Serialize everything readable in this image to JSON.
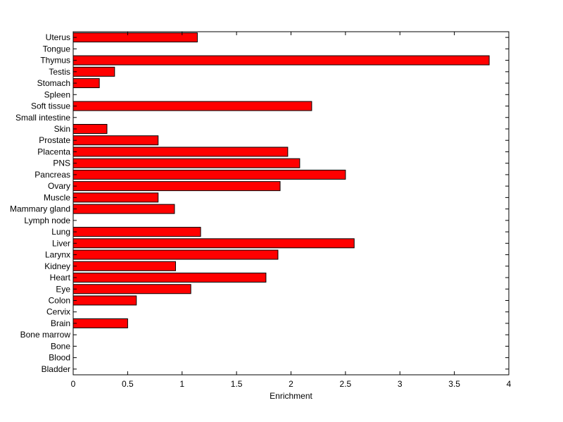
{
  "chart_data": {
    "type": "bar",
    "orientation": "horizontal",
    "title": "",
    "xlabel": "Enrichment",
    "ylabel": "",
    "xlim": [
      0,
      4
    ],
    "xticks": [
      "0",
      "0.5",
      "1",
      "1.5",
      "2",
      "2.5",
      "3",
      "3.5",
      "4"
    ],
    "grid": false,
    "legend": "none",
    "bar_color": "#ff0000",
    "categories": [
      "Uterus",
      "Tongue",
      "Thymus",
      "Testis",
      "Stomach",
      "Spleen",
      "Soft tissue",
      "Small intestine",
      "Skin",
      "Prostate",
      "Placenta",
      "PNS",
      "Pancreas",
      "Ovary",
      "Muscle",
      "Mammary gland",
      "Lymph node",
      "Lung",
      "Liver",
      "Larynx",
      "Kidney",
      "Heart",
      "Eye",
      "Colon",
      "Cervix",
      "Brain",
      "Bone marrow",
      "Bone",
      "Blood",
      "Bladder"
    ],
    "values": [
      1.14,
      0,
      3.82,
      0.38,
      0.24,
      0,
      2.19,
      0,
      0.31,
      0.78,
      1.97,
      2.08,
      2.5,
      1.9,
      0.78,
      0.93,
      0,
      1.17,
      2.58,
      1.88,
      0.94,
      1.77,
      1.08,
      0.58,
      0,
      0.5,
      0,
      0,
      0,
      0
    ]
  }
}
